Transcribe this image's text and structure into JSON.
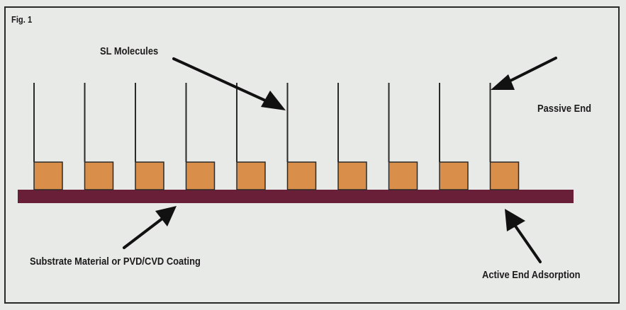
{
  "figure": {
    "fig_label": "Fig. 1"
  },
  "labels": {
    "sl_molecules": "SL Molecules",
    "passive_end": "Passive End",
    "substrate": "Substrate Material or PVD/CVD Coating",
    "active_end": "Active End Adsorption"
  },
  "molecules": {
    "count": 10
  },
  "colors": {
    "background": "#e8eae7",
    "substrate": "#6a1f39",
    "head_fill": "#d98f4a",
    "head_stroke": "#2a2a2a",
    "tail": "#2a2a2a",
    "arrow": "#111111"
  }
}
